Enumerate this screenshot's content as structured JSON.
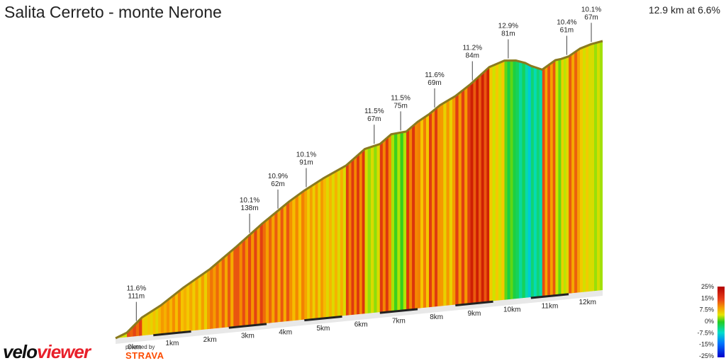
{
  "header": {
    "title": "Salita Cerreto - monte Nerone",
    "summary": "12.9 km at 6.6%"
  },
  "branding": {
    "logo_main": "velo",
    "logo_accent": "viewer",
    "powered_by": "powered by",
    "strava": "STRAVA"
  },
  "chart_data": {
    "type": "area",
    "title": "Salita Cerreto - monte Nerone",
    "xlabel": "",
    "ylabel": "",
    "xlim": [
      0,
      12.9
    ],
    "distance_ticks": [
      "0km",
      "1km",
      "2km",
      "3km",
      "4km",
      "5km",
      "6km",
      "7km",
      "8km",
      "9km",
      "10km",
      "11km",
      "12km"
    ],
    "profile": {
      "x_km": [
        0,
        0.3,
        0.7,
        1.2,
        1.8,
        2.5,
        3.2,
        3.9,
        4.6,
        5.0,
        5.5,
        6.1,
        6.6,
        7.0,
        7.3,
        7.7,
        8.0,
        8.3,
        8.6,
        9.0,
        9.4,
        9.9,
        10.3,
        10.6,
        10.85,
        11.0,
        11.3,
        11.65,
        11.8,
        12.0,
        12.3,
        12.6,
        12.9
      ],
      "gradient_pct": [
        4,
        5,
        11.6,
        7,
        9,
        8,
        10.1,
        10.9,
        10.1,
        9,
        8,
        7,
        11.5,
        4,
        11.5,
        2,
        11.6,
        9,
        11.2,
        8,
        11,
        12.9,
        6,
        0,
        -4,
        -7.5,
        -5,
        10.4,
        3,
        5,
        10.1,
        6,
        4
      ]
    },
    "gradient_legend": {
      "ticks": [
        "25%",
        "15%",
        "7.5%",
        "0%",
        "-7.5%",
        "-15%",
        "-25%"
      ]
    },
    "annotations": [
      {
        "km": 0.55,
        "grade": "11.6%",
        "length": "111m"
      },
      {
        "km": 3.55,
        "grade": "10.1%",
        "length": "138m"
      },
      {
        "km": 4.3,
        "grade": "10.9%",
        "length": "62m"
      },
      {
        "km": 5.05,
        "grade": "10.1%",
        "length": "91m"
      },
      {
        "km": 6.85,
        "grade": "11.5%",
        "length": "67m"
      },
      {
        "km": 7.55,
        "grade": "11.5%",
        "length": "75m"
      },
      {
        "km": 8.45,
        "grade": "11.6%",
        "length": "69m"
      },
      {
        "km": 9.45,
        "grade": "11.2%",
        "length": "84m"
      },
      {
        "km": 10.4,
        "grade": "12.9%",
        "length": "81m"
      },
      {
        "km": 11.95,
        "grade": "10.4%",
        "length": "61m"
      },
      {
        "km": 12.6,
        "grade": "10.1%",
        "length": "67m"
      }
    ],
    "colors": {
      "outline": "#8a7a1e",
      "tick_bar": "#222222",
      "label_text": "#222222"
    }
  }
}
